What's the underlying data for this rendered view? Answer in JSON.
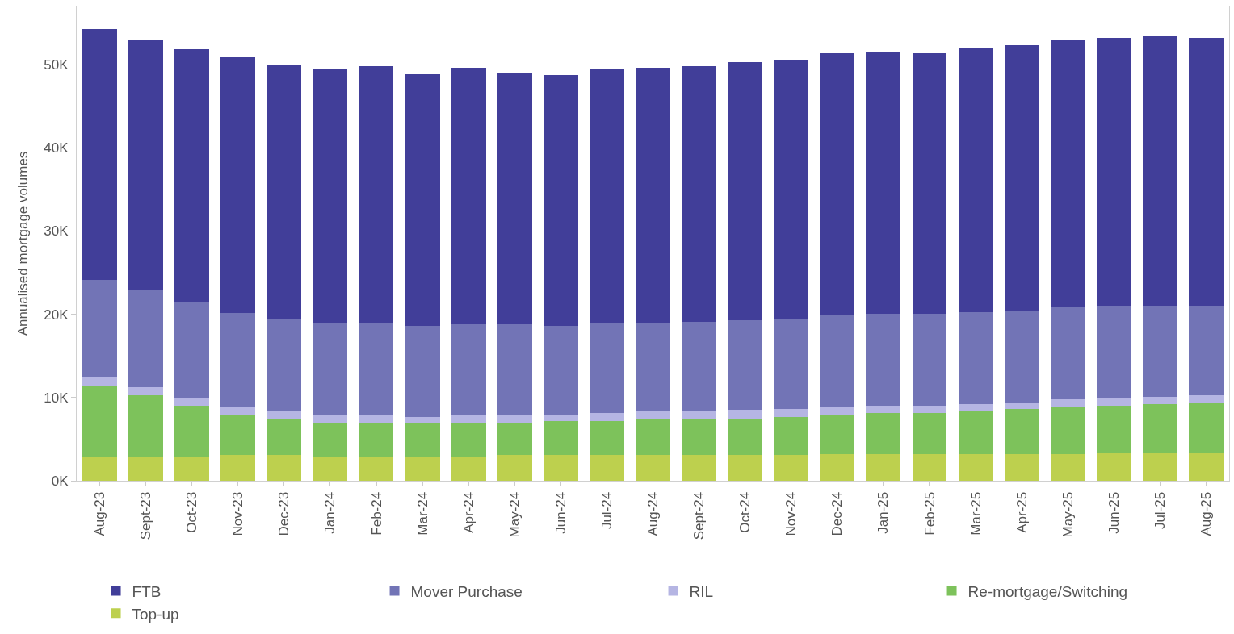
{
  "chart_data": {
    "type": "bar",
    "stacked": true,
    "ylabel": "Annualised mortgage volumes",
    "categories": [
      "Aug-23",
      "Sept-23",
      "Oct-23",
      "Nov-23",
      "Dec-23",
      "Jan-24",
      "Feb-24",
      "Mar-24",
      "Apr-24",
      "May-24",
      "Jun-24",
      "Jul-24",
      "Aug-24",
      "Sept-24",
      "Oct-24",
      "Nov-24",
      "Dec-24",
      "Jan-25",
      "Feb-25",
      "Mar-25",
      "Apr-25",
      "May-25",
      "Jun-25",
      "Jul-25",
      "Aug-25"
    ],
    "series": [
      {
        "name": "Top-up",
        "color": "#bdd04e",
        "values": [
          2900,
          2900,
          2900,
          3100,
          3100,
          2900,
          2900,
          2900,
          2900,
          3100,
          3100,
          3100,
          3100,
          3100,
          3100,
          3100,
          3200,
          3200,
          3200,
          3200,
          3200,
          3200,
          3400,
          3400,
          3400
        ]
      },
      {
        "name": "Re-mortgage/Switching",
        "color": "#7dc25b",
        "values": [
          8400,
          7400,
          6100,
          4800,
          4300,
          4100,
          4100,
          4100,
          4100,
          3900,
          4100,
          4100,
          4300,
          4400,
          4400,
          4600,
          4700,
          4900,
          4900,
          5100,
          5400,
          5600,
          5600,
          5800,
          6000
        ]
      },
      {
        "name": "RIL",
        "color": "#b5b5e3",
        "values": [
          1100,
          900,
          900,
          900,
          900,
          900,
          900,
          700,
          900,
          900,
          700,
          900,
          900,
          800,
          1000,
          900,
          900,
          900,
          900,
          900,
          800,
          1000,
          900,
          900,
          900
        ]
      },
      {
        "name": "Mover Purchase",
        "color": "#7274b6",
        "values": [
          11700,
          11700,
          11600,
          11400,
          11200,
          11000,
          11000,
          10900,
          10900,
          10900,
          10700,
          10800,
          10600,
          10800,
          10800,
          10900,
          11100,
          11100,
          11100,
          11100,
          11000,
          11000,
          11100,
          10900,
          10700
        ]
      },
      {
        "name": "FTB",
        "color": "#413e99",
        "values": [
          30200,
          30100,
          30400,
          30700,
          30500,
          30500,
          30900,
          30300,
          30800,
          30200,
          30200,
          30500,
          30700,
          30700,
          31000,
          31000,
          31500,
          31500,
          31300,
          31800,
          31900,
          32100,
          32200,
          32400,
          32200
        ]
      }
    ],
    "ylim": [
      0,
      57000
    ],
    "yticks": [
      {
        "value": 0,
        "label": "0K"
      },
      {
        "value": 10000,
        "label": "10K"
      },
      {
        "value": 20000,
        "label": "20K"
      },
      {
        "value": 30000,
        "label": "30K"
      },
      {
        "value": 40000,
        "label": "40K"
      },
      {
        "value": 50000,
        "label": "50K"
      }
    ],
    "grid": false,
    "legend": "bottom"
  }
}
